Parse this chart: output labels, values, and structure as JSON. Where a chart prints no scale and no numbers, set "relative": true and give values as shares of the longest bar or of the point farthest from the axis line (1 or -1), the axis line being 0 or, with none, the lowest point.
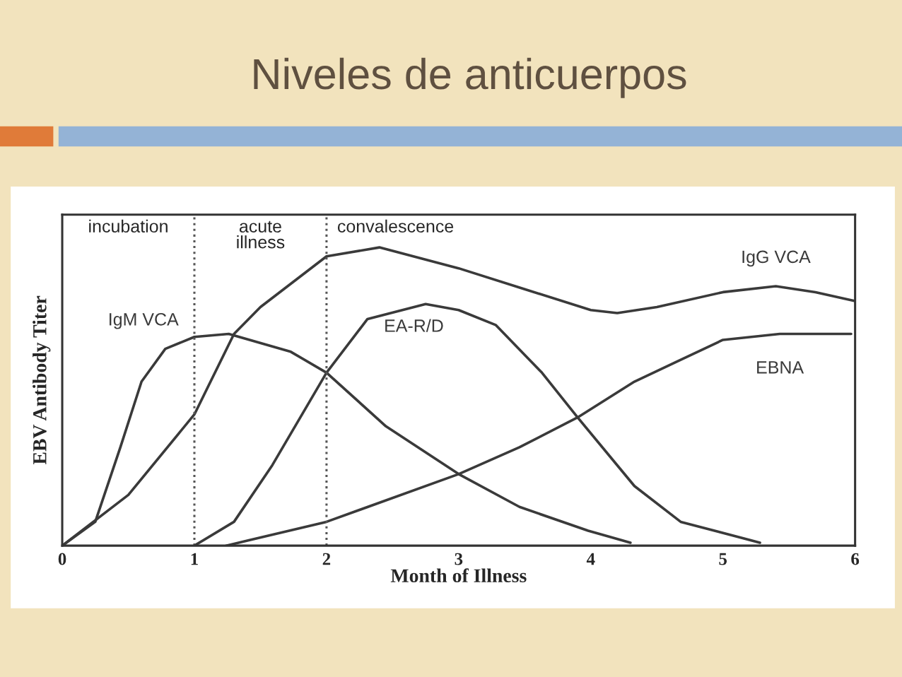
{
  "chart_data": {
    "type": "line",
    "title": "Niveles de anticuerpos",
    "xlabel": "Month of Illness",
    "ylabel": "EBV Antibody Titer",
    "relative": true,
    "xlim": [
      0,
      6
    ],
    "xticks": [
      0,
      1,
      2,
      3,
      4,
      5,
      6
    ],
    "grid": false,
    "legend": false,
    "marker": "none",
    "line_style": "solid",
    "annotations": [
      "incubation",
      "acute\nillness",
      "convalescence"
    ],
    "ref_lines": [
      {
        "axis": "x",
        "value": 1,
        "color": "#555555",
        "line_style": "dotted"
      },
      {
        "axis": "x",
        "value": 2,
        "color": "#555555",
        "line_style": "dotted"
      }
    ],
    "series": [
      {
        "name": "IgM VCA",
        "color": "#3a3a3a",
        "x": [
          0,
          0.25,
          0.44,
          0.6,
          0.78,
          1.0,
          1.26,
          1.73,
          2.0,
          2.45,
          3.0,
          3.46,
          3.98,
          4.3
        ],
        "values": [
          0,
          0.08,
          0.33,
          0.55,
          0.66,
          0.7,
          0.71,
          0.65,
          0.58,
          0.4,
          0.24,
          0.13,
          0.05,
          0.01
        ]
      },
      {
        "name": "IgG VCA",
        "color": "#3a3a3a",
        "x": [
          0,
          0.5,
          1,
          1.3,
          1.5,
          2,
          2.4,
          3,
          3.5,
          4,
          4.2,
          4.5,
          5,
          5.4,
          5.7,
          6
        ],
        "values": [
          0,
          0.17,
          0.44,
          0.71,
          0.8,
          0.97,
          1.0,
          0.93,
          0.86,
          0.79,
          0.78,
          0.8,
          0.85,
          0.87,
          0.85,
          0.82
        ]
      },
      {
        "name": "EA-R/D",
        "color": "#3a3a3a",
        "x": [
          1,
          1.3,
          1.59,
          2,
          2.31,
          2.75,
          3,
          3.28,
          3.63,
          3.9,
          4.33,
          4.68,
          5.28
        ],
        "values": [
          0,
          0.08,
          0.27,
          0.58,
          0.76,
          0.81,
          0.79,
          0.74,
          0.58,
          0.43,
          0.2,
          0.08,
          0.01
        ]
      },
      {
        "name": "EBNA",
        "color": "#3a3a3a",
        "x": [
          1.24,
          2,
          3,
          3.46,
          3.9,
          4.33,
          5,
          5.43,
          5.97
        ],
        "values": [
          0,
          0.08,
          0.24,
          0.33,
          0.43,
          0.55,
          0.69,
          0.71,
          0.71
        ]
      }
    ]
  }
}
